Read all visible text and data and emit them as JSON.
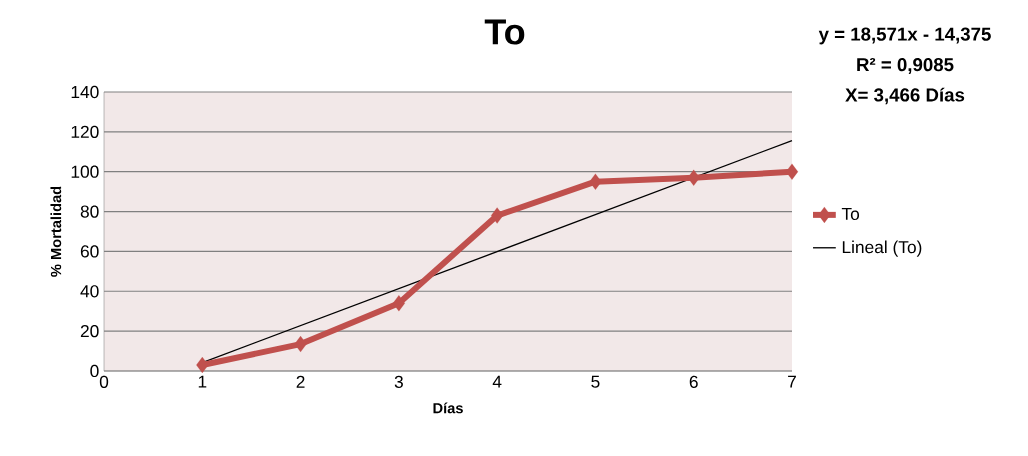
{
  "chart_data": {
    "type": "line",
    "title": "To",
    "xlabel": "Días",
    "ylabel": "% Mortalidad",
    "x": [
      1,
      2,
      3,
      4,
      5,
      6,
      7
    ],
    "series": [
      {
        "name": "To",
        "color": "#c0504d",
        "marker": "diamond",
        "values": [
          3,
          13.5,
          34,
          78,
          95,
          97,
          100
        ]
      },
      {
        "name": "Lineal (To)",
        "color": "#000000",
        "marker": "none",
        "x": [
          1,
          7
        ],
        "values": [
          4.2,
          115.6
        ]
      }
    ],
    "annotations": [
      "y = 18,571x - 14,375",
      "R² = 0,9085",
      "X=  3,466 Días"
    ],
    "xlim": [
      0,
      7
    ],
    "xticks": [
      0,
      1,
      2,
      3,
      4,
      5,
      6,
      7
    ],
    "ylim": [
      0,
      140
    ],
    "yticks": [
      0,
      20,
      40,
      60,
      80,
      100,
      120,
      140
    ],
    "grid": "y",
    "legend": "right"
  }
}
